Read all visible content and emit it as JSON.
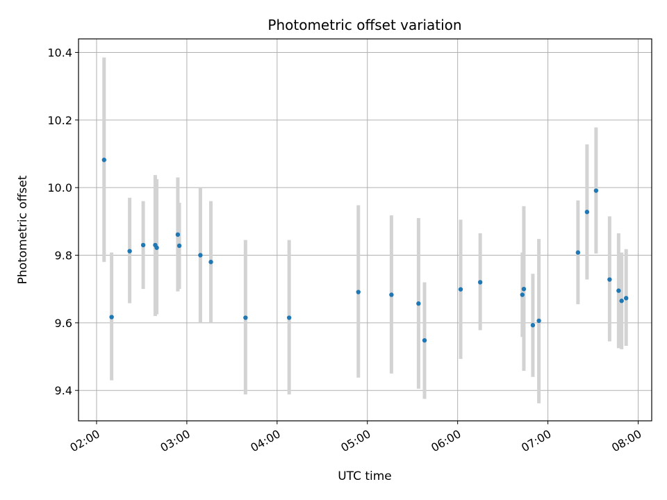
{
  "chart_data": {
    "type": "scatter",
    "title": "Photometric offset variation",
    "xlabel": "UTC time",
    "ylabel": "Photometric offset",
    "x_unit": "UTC time (HH:MM)",
    "xlim": [
      "01:48",
      "08:09"
    ],
    "ylim": [
      9.31,
      10.44
    ],
    "x_ticks": [
      "02:00",
      "03:00",
      "04:00",
      "05:00",
      "06:00",
      "07:00",
      "08:00"
    ],
    "y_ticks": [
      "9.4",
      "9.6",
      "9.8",
      "10.0",
      "10.2",
      "10.4"
    ],
    "y_tick_values": [
      9.4,
      9.6,
      9.8,
      10.0,
      10.2,
      10.4
    ],
    "grid": true,
    "point_color": "#1f77b4",
    "errorbar_color": "#d3d3d3",
    "points": [
      {
        "x": "02:05",
        "y": 10.082,
        "ylow": 9.78,
        "yhigh": 10.385
      },
      {
        "x": "02:10",
        "y": 9.617,
        "ylow": 9.43,
        "yhigh": 9.808
      },
      {
        "x": "02:22",
        "y": 9.812,
        "ylow": 9.658,
        "yhigh": 9.97
      },
      {
        "x": "02:31",
        "y": 9.83,
        "ylow": 9.7,
        "yhigh": 9.96
      },
      {
        "x": "02:39",
        "y": 9.83,
        "ylow": 9.62,
        "yhigh": 10.037
      },
      {
        "x": "02:40",
        "y": 9.822,
        "ylow": 9.625,
        "yhigh": 10.025
      },
      {
        "x": "02:54",
        "y": 9.861,
        "ylow": 9.693,
        "yhigh": 10.03
      },
      {
        "x": "02:55",
        "y": 9.828,
        "ylow": 9.7,
        "yhigh": 9.955
      },
      {
        "x": "03:09",
        "y": 9.8,
        "ylow": 9.6,
        "yhigh": 10.0
      },
      {
        "x": "03:16",
        "y": 9.78,
        "ylow": 9.6,
        "yhigh": 9.96
      },
      {
        "x": "03:39",
        "y": 9.615,
        "ylow": 9.388,
        "yhigh": 9.845
      },
      {
        "x": "04:08",
        "y": 9.615,
        "ylow": 9.388,
        "yhigh": 9.845
      },
      {
        "x": "04:54",
        "y": 9.691,
        "ylow": 9.438,
        "yhigh": 9.948
      },
      {
        "x": "05:16",
        "y": 9.683,
        "ylow": 9.45,
        "yhigh": 9.918
      },
      {
        "x": "05:34",
        "y": 9.657,
        "ylow": 9.405,
        "yhigh": 9.91
      },
      {
        "x": "05:38",
        "y": 9.548,
        "ylow": 9.375,
        "yhigh": 9.72
      },
      {
        "x": "06:02",
        "y": 9.699,
        "ylow": 9.493,
        "yhigh": 9.905
      },
      {
        "x": "06:15",
        "y": 9.72,
        "ylow": 9.578,
        "yhigh": 9.865
      },
      {
        "x": "06:43",
        "y": 9.683,
        "ylow": 9.558,
        "yhigh": 9.808
      },
      {
        "x": "06:44",
        "y": 9.7,
        "ylow": 9.458,
        "yhigh": 9.945
      },
      {
        "x": "06:50",
        "y": 9.593,
        "ylow": 9.44,
        "yhigh": 9.745
      },
      {
        "x": "06:54",
        "y": 9.606,
        "ylow": 9.362,
        "yhigh": 9.848
      },
      {
        "x": "07:20",
        "y": 9.808,
        "ylow": 9.655,
        "yhigh": 9.962
      },
      {
        "x": "07:26",
        "y": 9.928,
        "ylow": 9.728,
        "yhigh": 10.128
      },
      {
        "x": "07:32",
        "y": 9.991,
        "ylow": 9.805,
        "yhigh": 10.178
      },
      {
        "x": "07:41",
        "y": 9.728,
        "ylow": 9.545,
        "yhigh": 9.915
      },
      {
        "x": "07:47",
        "y": 9.695,
        "ylow": 9.525,
        "yhigh": 9.865
      },
      {
        "x": "07:49",
        "y": 9.665,
        "ylow": 9.522,
        "yhigh": 9.808
      },
      {
        "x": "07:52",
        "y": 9.673,
        "ylow": 9.532,
        "yhigh": 9.818
      }
    ]
  }
}
